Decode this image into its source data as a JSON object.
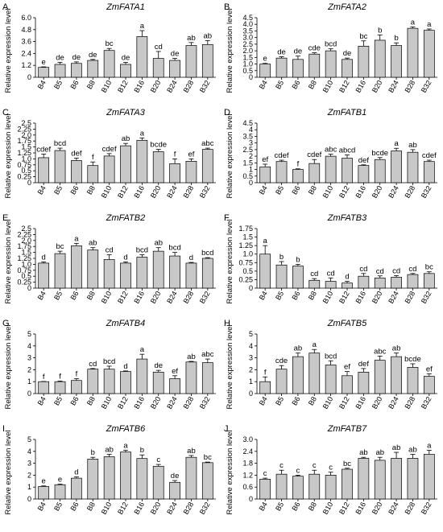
{
  "chart_data": [
    {
      "type": "bar",
      "panel": "A",
      "title": "ZmFATA1",
      "y_label": "Relative expression level",
      "categories": [
        "B4",
        "B5",
        "B6",
        "B8",
        "B10",
        "B12",
        "B16",
        "B20",
        "B24",
        "B28",
        "B32"
      ],
      "values": [
        1.0,
        1.3,
        1.4,
        1.7,
        2.7,
        1.3,
        4.1,
        1.9,
        1.7,
        3.2,
        3.3
      ],
      "errors": [
        0.05,
        0.2,
        0.15,
        0.1,
        0.2,
        0.2,
        0.6,
        0.7,
        0.2,
        0.3,
        0.4
      ],
      "annotations": [
        "e",
        "de",
        "de",
        "de",
        "bc",
        "de",
        "a",
        "cd",
        "de",
        "ab",
        "ab"
      ],
      "color": "#c8c8c8",
      "ylim": [
        0,
        6
      ],
      "yticks": [
        0,
        1.2,
        2.4,
        3.6,
        4.8,
        {
          "value": 6,
          "label": "6.0"
        }
      ]
    },
    {
      "type": "bar",
      "panel": "B",
      "title": "ZmFATA2",
      "y_label": "Relative expression level",
      "categories": [
        "B4",
        "B5",
        "B6",
        "B8",
        "B10",
        "B12",
        "B16",
        "B20",
        "B24",
        "B28",
        "B32"
      ],
      "values": [
        1.0,
        1.45,
        1.35,
        1.75,
        2.0,
        1.35,
        2.35,
        2.8,
        2.4,
        3.7,
        3.55
      ],
      "errors": [
        0.05,
        0.1,
        0.25,
        0.1,
        0.15,
        0.1,
        0.4,
        0.4,
        0.2,
        0.1,
        0.1
      ],
      "annotations": [
        "e",
        "de",
        "de",
        "cde",
        "bcd",
        "de",
        "bc",
        "b",
        "b",
        "a",
        "a"
      ],
      "color": "#c8c8c8",
      "ylim": [
        0,
        4.5
      ],
      "yticks": [
        0,
        0.5,
        {
          "value": 1,
          "label": "1.0"
        },
        1.5,
        {
          "value": 2,
          "label": "2.0"
        },
        2.5,
        {
          "value": 3,
          "label": "3.0"
        },
        3.5,
        {
          "value": 4,
          "label": "4.0"
        },
        4.5
      ]
    },
    {
      "type": "bar",
      "panel": "C",
      "title": "ZmFATA3",
      "y_label": "Relative expression level",
      "categories": [
        "B4",
        "B5",
        "B6",
        "B8",
        "B10",
        "B12",
        "B16",
        "B20",
        "B24",
        "B28",
        "B32"
      ],
      "values": [
        1.05,
        1.35,
        0.93,
        0.72,
        1.12,
        1.55,
        1.78,
        1.3,
        0.8,
        0.9,
        1.4
      ],
      "errors": [
        0.15,
        0.1,
        0.1,
        0.15,
        0.1,
        0.1,
        0.1,
        0.1,
        0.2,
        0.1,
        0.05
      ],
      "annotations": [
        "cdef",
        "bcd",
        "def",
        "f",
        "cdef",
        "ab",
        "a",
        "bcde",
        "f",
        "ef",
        "abc"
      ],
      "color": "#c8c8c8",
      "ylim": [
        0,
        2.5
      ],
      "yticks": [
        0,
        0.25,
        0.5,
        0.75,
        {
          "value": 1,
          "label": "1.0"
        },
        1.25,
        1.5,
        1.75,
        {
          "value": 2,
          "label": "2.0"
        },
        2.25,
        2.5
      ]
    },
    {
      "type": "bar",
      "panel": "D",
      "title": "ZmFATB1",
      "y_label": "Relative expression level",
      "categories": [
        "B4",
        "B5",
        "B6",
        "B8",
        "B10",
        "B12",
        "B16",
        "B20",
        "B24",
        "B28",
        "B32"
      ],
      "values": [
        1.2,
        1.6,
        1.0,
        1.45,
        2.0,
        1.85,
        1.3,
        1.75,
        2.4,
        2.3,
        1.6
      ],
      "errors": [
        0.2,
        0.1,
        0.05,
        0.3,
        0.15,
        0.25,
        0.05,
        0.15,
        0.2,
        0.2,
        0.1
      ],
      "annotations": [
        "ef",
        "cdef",
        "f",
        "cdef",
        "abc",
        "abcd",
        "def",
        "bcde",
        "a",
        "ab",
        "cdef"
      ],
      "color": "#c8c8c8",
      "ylim": [
        0,
        4.5
      ],
      "yticks": [
        0,
        0.5,
        1,
        1.5,
        2,
        2.5,
        3,
        3.5,
        4,
        4.5
      ]
    },
    {
      "type": "bar",
      "panel": "E",
      "title": "ZmFATB2",
      "y_label": "Relative expression level",
      "categories": [
        "B4",
        "B5",
        "B6",
        "B8",
        "B10",
        "B12",
        "B16",
        "B20",
        "B24",
        "B28",
        "B32"
      ],
      "values": [
        1.05,
        1.45,
        1.78,
        1.6,
        1.2,
        1.05,
        1.3,
        1.55,
        1.35,
        1.05,
        1.25
      ],
      "errors": [
        0.05,
        0.1,
        0.1,
        0.1,
        0.2,
        0.05,
        0.1,
        0.15,
        0.15,
        0.03,
        0.03
      ],
      "annotations": [
        "d",
        "bc",
        "a",
        "ab",
        "cd",
        "d",
        "bcd",
        "ab",
        "bcd",
        "d",
        "bcd"
      ],
      "color": "#c8c8c8",
      "ylim": [
        0,
        2.5
      ],
      "yticks": [
        0,
        0.25,
        0.5,
        0.75,
        {
          "value": 1,
          "label": "1.0"
        },
        1.25,
        1.5,
        1.75,
        {
          "value": 2,
          "label": "2.0"
        },
        2.25,
        2.5
      ]
    },
    {
      "type": "bar",
      "panel": "F",
      "title": "ZmFATB3",
      "y_label": "Relative expression level",
      "categories": [
        "B4",
        "B5",
        "B6",
        "B8",
        "B10",
        "B12",
        "B16",
        "B20",
        "B24",
        "B28",
        "B32"
      ],
      "values": [
        1.0,
        0.68,
        0.65,
        0.23,
        0.2,
        0.15,
        0.35,
        0.3,
        0.32,
        0.4,
        0.43
      ],
      "errors": [
        0.25,
        0.1,
        0.05,
        0.05,
        0.1,
        0.05,
        0.08,
        0.06,
        0.05,
        0.03,
        0.05
      ],
      "annotations": [
        "a",
        "b",
        "b",
        "cd",
        "cd",
        "d",
        "cd",
        "cd",
        "cd",
        "cd",
        "bc"
      ],
      "color": "#c8c8c8",
      "ylim": [
        0,
        1.75
      ],
      "yticks": [
        0,
        0.25,
        0.5,
        0.75,
        {
          "value": 1,
          "label": "1.0"
        },
        1.25,
        1.5,
        1.75
      ]
    },
    {
      "type": "bar",
      "panel": "G",
      "title": "ZmFATB4",
      "y_label": "Relative expression level",
      "categories": [
        "B4",
        "B5",
        "B6",
        "B8",
        "B10",
        "B12",
        "B16",
        "B20",
        "B24",
        "B28",
        "B32"
      ],
      "values": [
        1.0,
        1.0,
        1.1,
        2.05,
        2.05,
        1.85,
        2.9,
        1.8,
        1.25,
        2.65,
        2.6
      ],
      "errors": [
        0.02,
        0.05,
        0.15,
        0.05,
        0.25,
        0.05,
        0.4,
        0.15,
        0.25,
        0.05,
        0.3
      ],
      "annotations": [
        "f",
        "f",
        "f",
        "cd",
        "bcd",
        "d",
        "a",
        "de",
        "ef",
        "ab",
        "abc"
      ],
      "color": "#c8c8c8",
      "ylim": [
        0,
        5
      ],
      "yticks": [
        0,
        1,
        2,
        3,
        4,
        5
      ]
    },
    {
      "type": "bar",
      "panel": "H",
      "title": "ZmFATB5",
      "y_label": "Relative expression level",
      "categories": [
        "B4",
        "B5",
        "B6",
        "B8",
        "B10",
        "B12",
        "B16",
        "B20",
        "B24",
        "B28",
        "B32"
      ],
      "values": [
        1.0,
        2.05,
        3.1,
        3.4,
        2.4,
        1.5,
        1.8,
        2.8,
        3.1,
        2.2,
        1.45
      ],
      "errors": [
        0.4,
        0.3,
        0.3,
        0.3,
        0.35,
        0.35,
        0.3,
        0.35,
        0.3,
        0.3,
        0.2
      ],
      "annotations": [
        "f",
        "cde",
        "ab",
        "a",
        "bcd",
        "ef",
        "def",
        "abc",
        "ab",
        "bcde",
        "ef"
      ],
      "color": "#c8c8c8",
      "ylim": [
        0,
        5
      ],
      "yticks": [
        0,
        1,
        2,
        3,
        4,
        5
      ]
    },
    {
      "type": "bar",
      "panel": "I",
      "title": "ZmFATB6",
      "y_label": "Relative expression level",
      "categories": [
        "B4",
        "B5",
        "B6",
        "B8",
        "B10",
        "B12",
        "B16",
        "B20",
        "B24",
        "B28",
        "B32"
      ],
      "values": [
        1.05,
        1.2,
        1.75,
        3.35,
        3.55,
        3.95,
        3.4,
        2.75,
        1.4,
        3.5,
        3.05
      ],
      "errors": [
        0.05,
        0.05,
        0.1,
        0.15,
        0.2,
        0.15,
        0.3,
        0.15,
        0.15,
        0.15,
        0.05
      ],
      "annotations": [
        "e",
        "e",
        "d",
        "b",
        "ab",
        "a",
        "b",
        "c",
        "de",
        "ab",
        "bc"
      ],
      "color": "#c8c8c8",
      "ylim": [
        0,
        5
      ],
      "yticks": [
        0,
        1,
        2,
        3,
        4,
        5
      ]
    },
    {
      "type": "bar",
      "panel": "J",
      "title": "ZmFATB7",
      "y_label": "Relative expression level",
      "categories": [
        "B4",
        "B5",
        "B6",
        "B8",
        "B10",
        "B12",
        "B16",
        "B20",
        "B24",
        "B28",
        "B32"
      ],
      "values": [
        1.0,
        1.25,
        1.15,
        1.25,
        1.2,
        1.5,
        2.05,
        1.95,
        2.05,
        2.05,
        2.25
      ],
      "errors": [
        0.05,
        0.2,
        0.05,
        0.2,
        0.15,
        0.05,
        0.05,
        0.15,
        0.3,
        0.2,
        0.2
      ],
      "annotations": [
        "c",
        "c",
        "c",
        "c",
        "c",
        "bc",
        "ab",
        "ab",
        "ab",
        "ab",
        "a"
      ],
      "color": "#c8c8c8",
      "ylim": [
        0,
        3
      ],
      "yticks": [
        0,
        0.6,
        1.2,
        1.8,
        2.4,
        {
          "value": 3,
          "label": "3.0"
        }
      ]
    }
  ]
}
